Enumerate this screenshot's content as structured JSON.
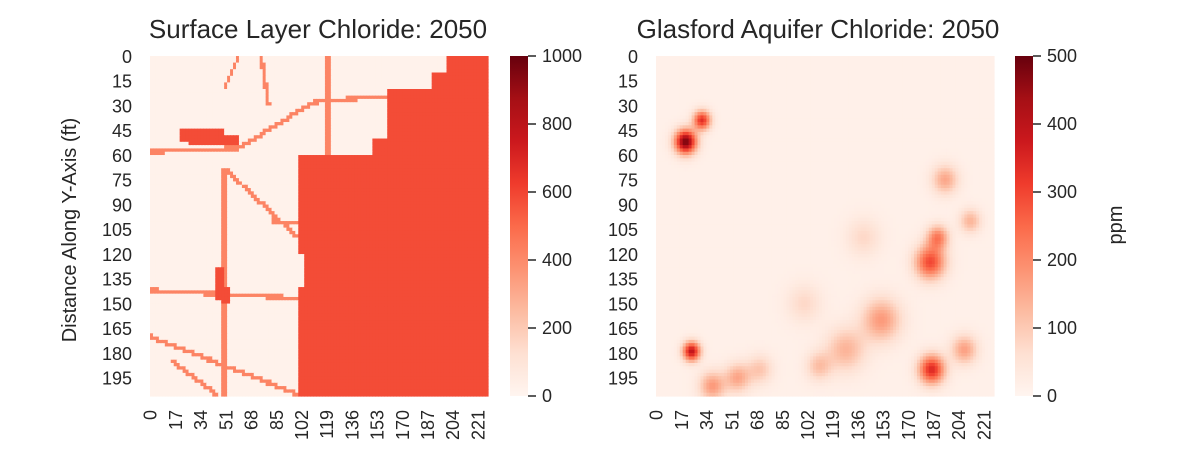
{
  "chart_data": [
    {
      "type": "heatmap",
      "title": "Surface Layer Chloride: 2050",
      "ylabel": "Distance Along Y-Axis (ft)",
      "xlabel": "",
      "colormap": "Reds",
      "color_range": [
        0,
        1000
      ],
      "colorbar_ticks": [
        "0",
        "200",
        "400",
        "600",
        "800",
        "1000"
      ],
      "colorbar_label": "",
      "x_ticks": [
        "0",
        "17",
        "34",
        "51",
        "68",
        "85",
        "102",
        "119",
        "136",
        "153",
        "170",
        "187",
        "204",
        "221"
      ],
      "y_ticks": [
        "0",
        "15",
        "30",
        "45",
        "60",
        "75",
        "90",
        "105",
        "120",
        "135",
        "150",
        "165",
        "180",
        "195"
      ],
      "background_value": 20,
      "area_value": 580,
      "urban_areas": [
        [
          27,
          48,
          60,
          53
        ],
        [
          20,
          44,
          50,
          52
        ],
        [
          45,
          128,
          50,
          148
        ],
        [
          48,
          140,
          54,
          150
        ],
        [
          100,
          60,
          228,
          120
        ],
        [
          105,
          100,
          180,
          140
        ],
        [
          105,
          110,
          228,
          180
        ],
        [
          100,
          140,
          228,
          205
        ],
        [
          118,
          115,
          140,
          135
        ],
        [
          150,
          50,
          190,
          90
        ],
        [
          160,
          20,
          200,
          55
        ],
        [
          175,
          70,
          215,
          100
        ],
        [
          190,
          10,
          228,
          70
        ],
        [
          200,
          0,
          228,
          25
        ],
        [
          215,
          50,
          228,
          180
        ],
        [
          180,
          160,
          228,
          205
        ]
      ],
      "road_value": 420,
      "roads": [
        [
          0,
          58,
          60,
          56
        ],
        [
          60,
          56,
          110,
          28
        ],
        [
          110,
          28,
          190,
          22
        ],
        [
          50,
          20,
          60,
          0
        ],
        [
          120,
          0,
          120,
          205
        ],
        [
          50,
          68,
          50,
          205
        ],
        [
          50,
          68,
          100,
          110
        ],
        [
          0,
          142,
          125,
          148
        ],
        [
          125,
          148,
          150,
          155
        ],
        [
          0,
          170,
          100,
          205
        ],
        [
          15,
          185,
          45,
          205
        ],
        [
          82,
          100,
          130,
          103
        ],
        [
          155,
          95,
          220,
          85
        ],
        [
          75,
          0,
          80,
          30
        ]
      ]
    },
    {
      "type": "heatmap",
      "title": "Glasford Aquifer Chloride: 2050",
      "ylabel": "",
      "xlabel": "",
      "colormap": "Reds",
      "color_range": [
        0,
        500
      ],
      "colorbar_ticks": [
        "0",
        "100",
        "200",
        "300",
        "400",
        "500"
      ],
      "colorbar_label": "ppm",
      "x_ticks": [
        "0",
        "17",
        "34",
        "51",
        "68",
        "85",
        "102",
        "119",
        "136",
        "153",
        "170",
        "187",
        "204",
        "221"
      ],
      "y_ticks": [
        "0",
        "15",
        "30",
        "45",
        "60",
        "75",
        "90",
        "105",
        "120",
        "135",
        "150",
        "165",
        "180",
        "195"
      ],
      "background_value": 15,
      "hotspots": [
        [
          20,
          52,
          5,
          470
        ],
        [
          31,
          39,
          4,
          320
        ],
        [
          24,
          179,
          4,
          380
        ],
        [
          185,
          125,
          7,
          280
        ],
        [
          186,
          190,
          6,
          330
        ],
        [
          190,
          110,
          5,
          200
        ],
        [
          152,
          160,
          9,
          160
        ],
        [
          128,
          178,
          9,
          120
        ],
        [
          110,
          188,
          6,
          100
        ],
        [
          55,
          195,
          6,
          140
        ],
        [
          38,
          200,
          6,
          160
        ],
        [
          195,
          75,
          6,
          140
        ],
        [
          208,
          178,
          6,
          150
        ],
        [
          212,
          100,
          5,
          120
        ],
        [
          140,
          110,
          8,
          60
        ],
        [
          100,
          150,
          8,
          60
        ],
        [
          70,
          190,
          6,
          90
        ]
      ]
    }
  ]
}
